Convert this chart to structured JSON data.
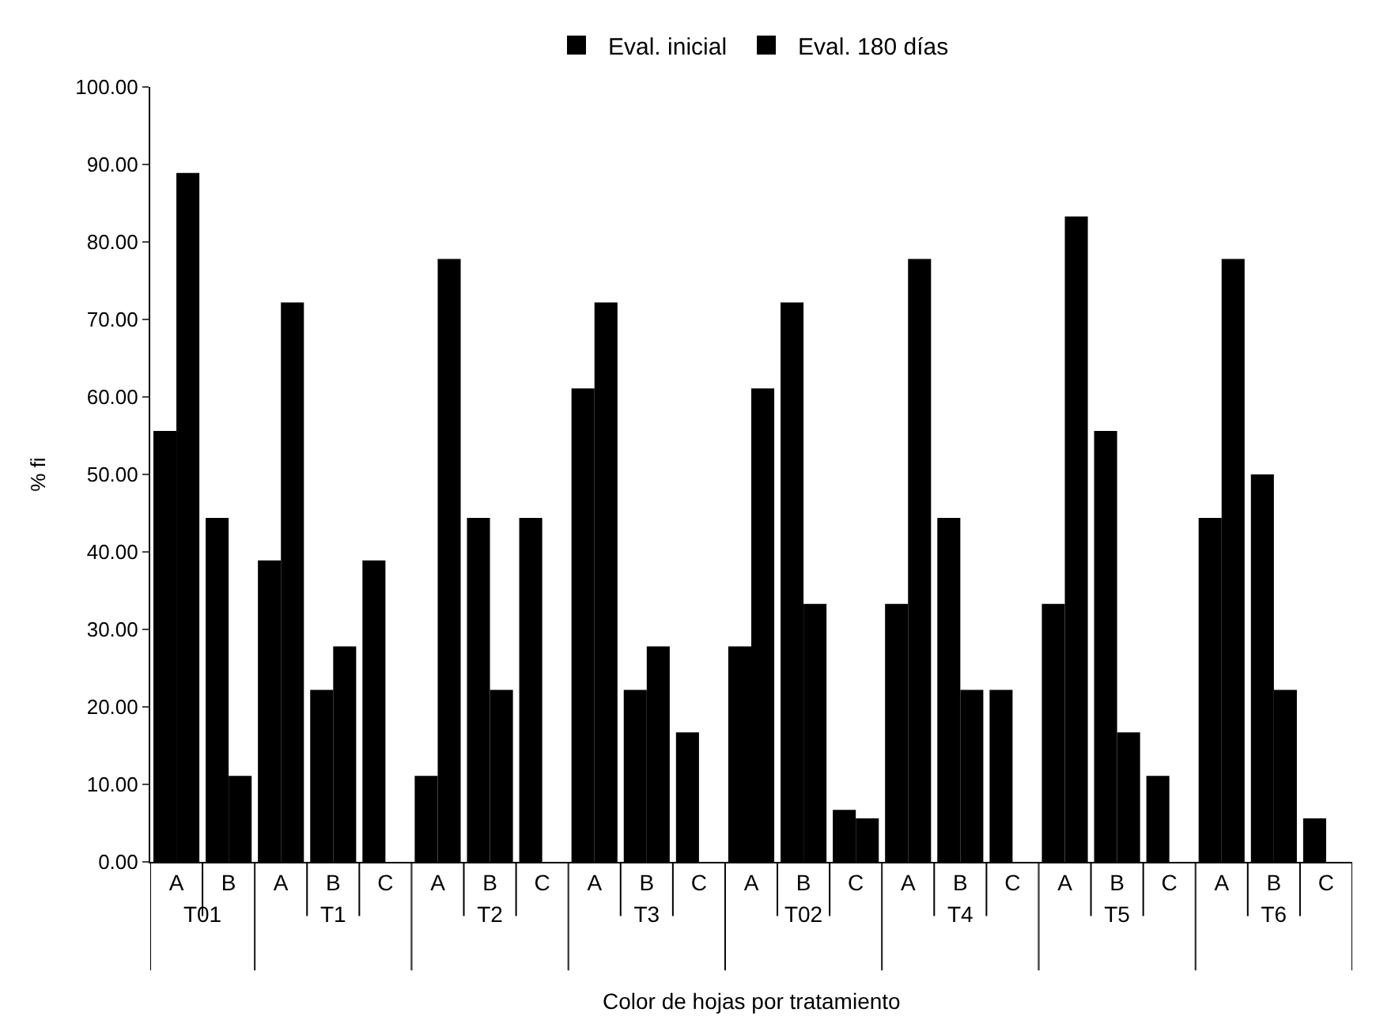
{
  "chart_data": [
    {
      "type": "bar",
      "xlabel": "T01",
      "ylabel": "% fi",
      "annotations": [
        "Color de hojas por tratamiento"
      ],
      "categories": [
        "A",
        "B"
      ],
      "series": [
        {
          "name": "Eval. inicial",
          "color": "#000000",
          "values": [
            55.6,
            44.4
          ]
        },
        {
          "name": "Eval. 180 días",
          "color": "#000000",
          "values": [
            88.9,
            11.1
          ]
        }
      ],
      "ylim": [
        0,
        100
      ],
      "yticks": [
        {
          "value": 0,
          "label": "0.00"
        },
        {
          "value": 10,
          "label": "10.00"
        },
        {
          "value": 20,
          "label": "20.00"
        },
        {
          "value": 30,
          "label": "30.00"
        },
        {
          "value": 40,
          "label": "40.00"
        },
        {
          "value": 50,
          "label": "50.00"
        },
        {
          "value": 60,
          "label": "60.00"
        },
        {
          "value": 70,
          "label": "70.00"
        },
        {
          "value": 80,
          "label": "80.00"
        },
        {
          "value": 90,
          "label": "90.00"
        },
        {
          "value": 100,
          "label": "100.00"
        }
      ],
      "legend": "top"
    },
    {
      "type": "bar",
      "xlabel": "T1",
      "categories": [
        "A",
        "B",
        "C"
      ],
      "series": [
        {
          "color": "#000000",
          "values": [
            38.9,
            22.2,
            38.9
          ]
        },
        {
          "color": "#000000",
          "values": [
            72.2,
            27.8,
            null
          ]
        }
      ],
      "ylim": [
        0,
        100
      ],
      "tick_labels": "x"
    },
    {
      "type": "bar",
      "xlabel": "T2",
      "categories": [
        "A",
        "B",
        "C"
      ],
      "series": [
        {
          "color": "#000000",
          "values": [
            11.1,
            44.4,
            44.4
          ]
        },
        {
          "color": "#000000",
          "values": [
            77.8,
            22.2,
            null
          ]
        }
      ],
      "ylim": [
        0,
        100
      ],
      "tick_labels": "x"
    },
    {
      "type": "bar",
      "xlabel": "T3",
      "categories": [
        "A",
        "B",
        "C"
      ],
      "series": [
        {
          "color": "#000000",
          "values": [
            61.1,
            22.2,
            16.7
          ]
        },
        {
          "color": "#000000",
          "values": [
            72.2,
            27.8,
            null
          ]
        }
      ],
      "ylim": [
        0,
        100
      ],
      "tick_labels": "x"
    },
    {
      "type": "bar",
      "xlabel": "T02",
      "categories": [
        "A",
        "B",
        "C"
      ],
      "series": [
        {
          "color": "#000000",
          "values": [
            27.8,
            72.2,
            6.7
          ]
        },
        {
          "color": "#000000",
          "values": [
            61.1,
            33.3,
            5.6
          ]
        }
      ],
      "ylim": [
        0,
        100
      ],
      "tick_labels": "x"
    },
    {
      "type": "bar",
      "xlabel": "T4",
      "categories": [
        "A",
        "B",
        "C"
      ],
      "series": [
        {
          "color": "#000000",
          "values": [
            33.3,
            44.4,
            22.2
          ]
        },
        {
          "color": "#000000",
          "values": [
            77.8,
            22.2,
            null
          ]
        }
      ],
      "ylim": [
        0,
        100
      ],
      "tick_labels": "x"
    },
    {
      "type": "bar",
      "xlabel": "T5",
      "categories": [
        "A",
        "B",
        "C"
      ],
      "series": [
        {
          "color": "#000000",
          "values": [
            33.3,
            55.6,
            11.1
          ]
        },
        {
          "color": "#000000",
          "values": [
            83.3,
            16.7,
            null
          ]
        }
      ],
      "ylim": [
        0,
        100
      ],
      "tick_labels": "x"
    },
    {
      "type": "bar",
      "xlabel": "T6",
      "categories": [
        "A",
        "B",
        "C"
      ],
      "series": [
        {
          "color": "#000000",
          "values": [
            44.4,
            50.0,
            5.6
          ]
        },
        {
          "color": "#000000",
          "values": [
            77.8,
            22.2,
            null
          ]
        }
      ],
      "ylim": [
        0,
        100
      ],
      "tick_labels": "x"
    }
  ]
}
